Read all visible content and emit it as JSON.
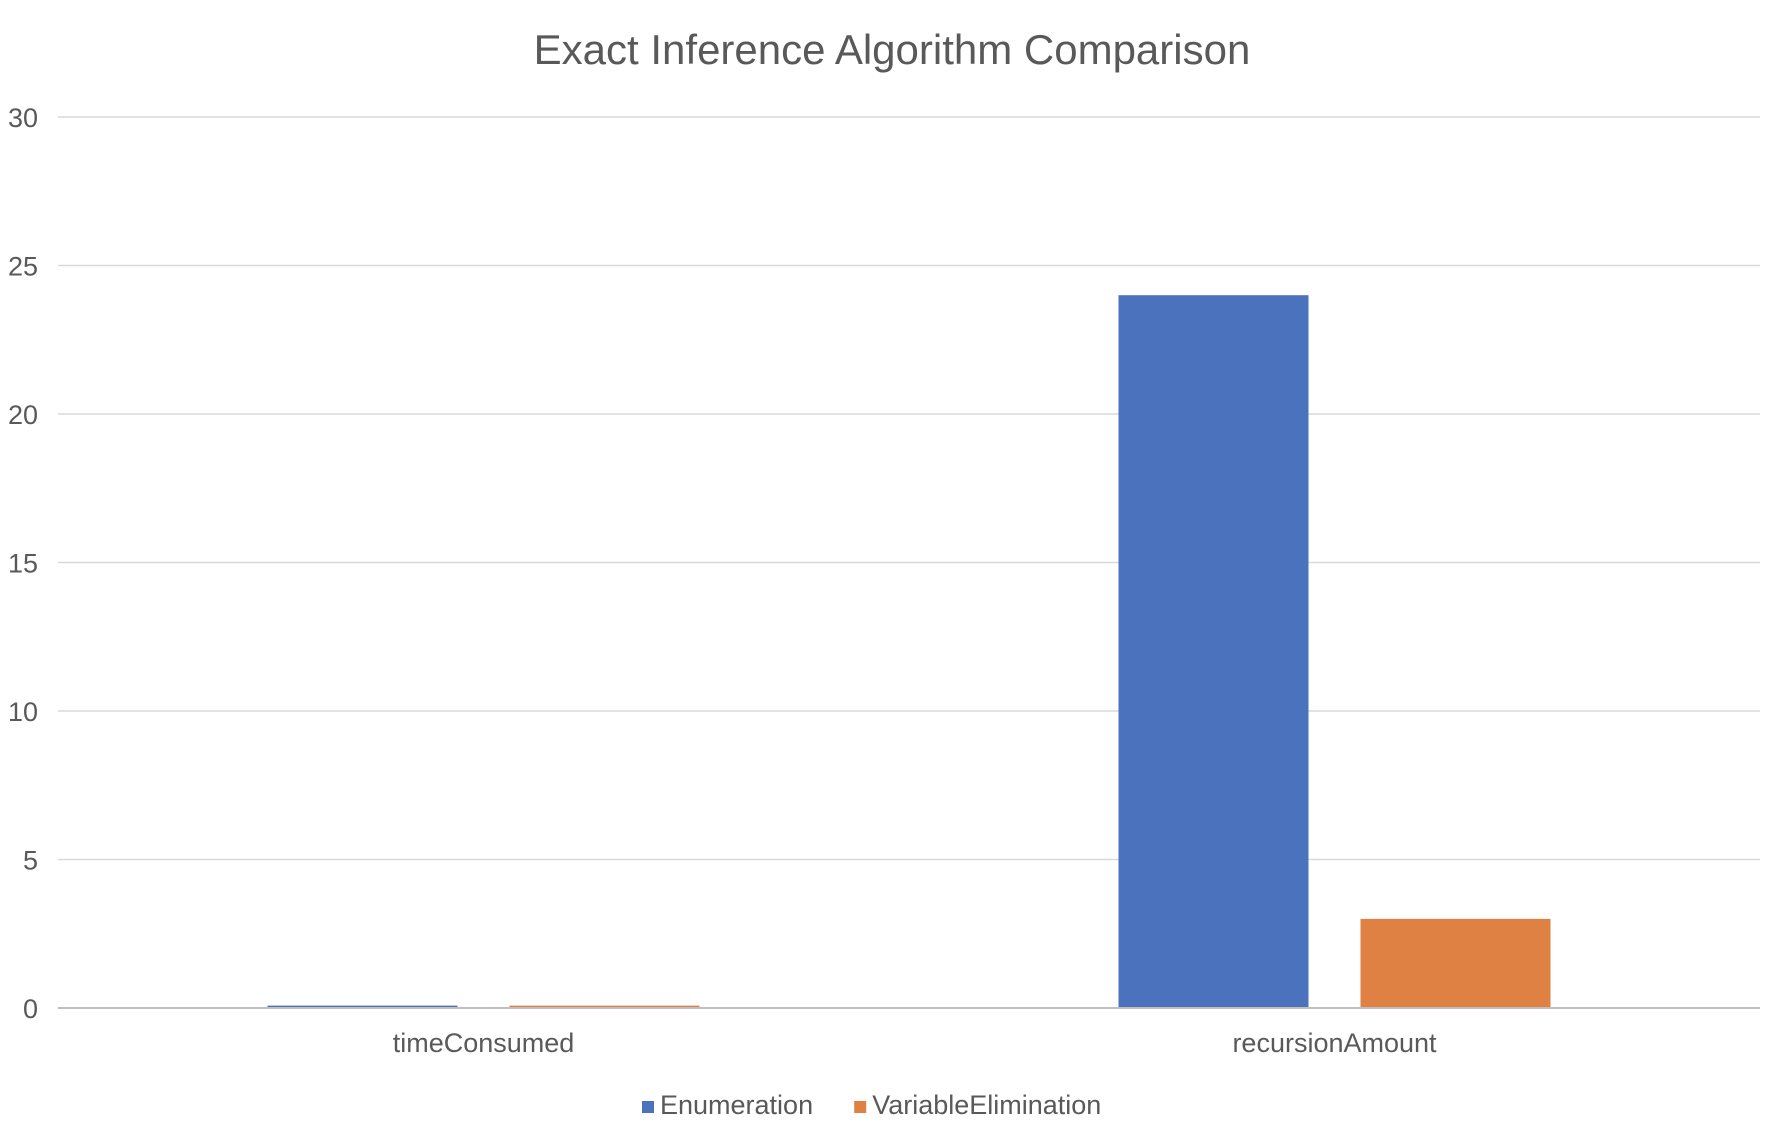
{
  "chart_data": {
    "type": "bar",
    "title": "Exact Inference Algorithm Comparison",
    "categories": [
      "timeConsumed",
      "recursionAmount"
    ],
    "series": [
      {
        "name": "Enumeration",
        "values": [
          0.08,
          24
        ],
        "color": "#4a72bd"
      },
      {
        "name": "VariableElimination",
        "values": [
          0.08,
          3
        ],
        "color": "#df8142"
      }
    ],
    "yticks": [
      "0",
      "5",
      "10",
      "15",
      "20",
      "25",
      "30"
    ],
    "ylim": [
      0,
      30
    ],
    "grid": true,
    "legend": "bottom"
  }
}
